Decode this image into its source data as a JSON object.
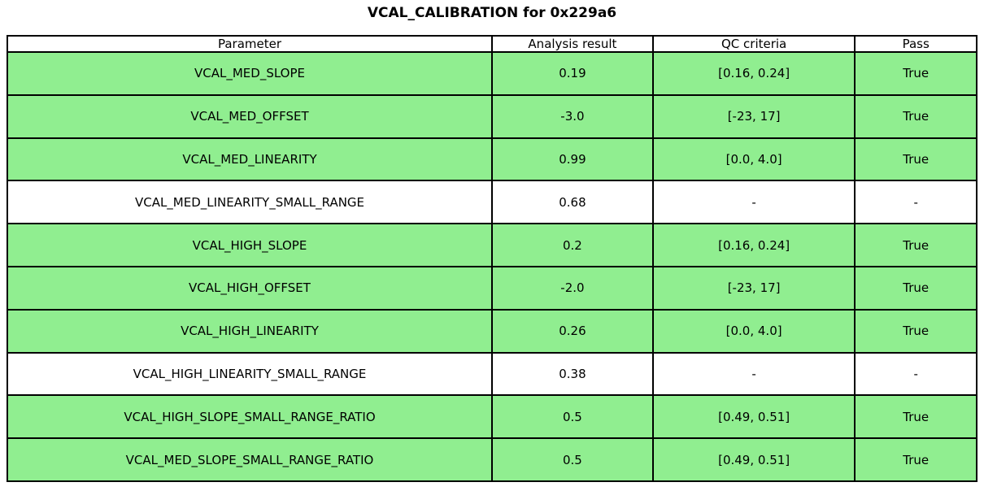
{
  "title": "VCAL_CALIBRATION for 0x229a6",
  "colors": {
    "pass_row_bg": "#90EE90",
    "default_row_bg": "#FFFFFF",
    "border": "#000000",
    "text": "#000000"
  },
  "chart_data": {
    "type": "table",
    "title": "VCAL_CALIBRATION for 0x229a6",
    "columns": [
      "Parameter",
      "Analysis result",
      "QC criteria",
      "Pass"
    ],
    "rows": [
      {
        "parameter": "VCAL_MED_SLOPE",
        "analysis_result": "0.19",
        "qc_criteria": "[0.16, 0.24]",
        "pass": "True",
        "highlighted": true
      },
      {
        "parameter": "VCAL_MED_OFFSET",
        "analysis_result": "-3.0",
        "qc_criteria": "[-23, 17]",
        "pass": "True",
        "highlighted": true
      },
      {
        "parameter": "VCAL_MED_LINEARITY",
        "analysis_result": "0.99",
        "qc_criteria": "[0.0, 4.0]",
        "pass": "True",
        "highlighted": true
      },
      {
        "parameter": "VCAL_MED_LINEARITY_SMALL_RANGE",
        "analysis_result": "0.68",
        "qc_criteria": "-",
        "pass": "-",
        "highlighted": false
      },
      {
        "parameter": "VCAL_HIGH_SLOPE",
        "analysis_result": "0.2",
        "qc_criteria": "[0.16, 0.24]",
        "pass": "True",
        "highlighted": true
      },
      {
        "parameter": "VCAL_HIGH_OFFSET",
        "analysis_result": "-2.0",
        "qc_criteria": "[-23, 17]",
        "pass": "True",
        "highlighted": true
      },
      {
        "parameter": "VCAL_HIGH_LINEARITY",
        "analysis_result": "0.26",
        "qc_criteria": "[0.0, 4.0]",
        "pass": "True",
        "highlighted": true
      },
      {
        "parameter": "VCAL_HIGH_LINEARITY_SMALL_RANGE",
        "analysis_result": "0.38",
        "qc_criteria": "-",
        "pass": "-",
        "highlighted": false
      },
      {
        "parameter": "VCAL_HIGH_SLOPE_SMALL_RANGE_RATIO",
        "analysis_result": "0.5",
        "qc_criteria": "[0.49, 0.51]",
        "pass": "True",
        "highlighted": true
      },
      {
        "parameter": "VCAL_MED_SLOPE_SMALL_RANGE_RATIO",
        "analysis_result": "0.5",
        "qc_criteria": "[0.49, 0.51]",
        "pass": "True",
        "highlighted": true
      }
    ]
  }
}
